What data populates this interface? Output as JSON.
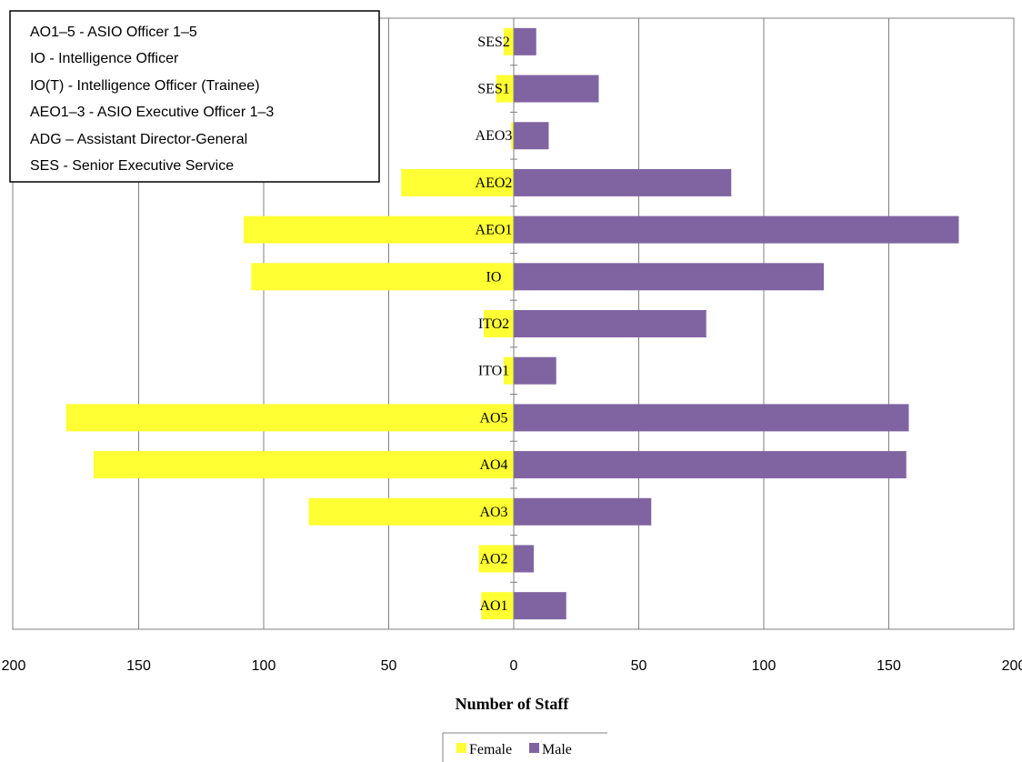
{
  "chart_data": {
    "type": "bar",
    "orientation": "horizontal",
    "layout": "butterfly",
    "categories": [
      "SES2",
      "SES1",
      "AEO3",
      "AEO2",
      "AEO1",
      "IO",
      "ITO2",
      "ITO1",
      "AO5",
      "AO4",
      "AO3",
      "AO2",
      "AO1"
    ],
    "series": [
      {
        "name": "Female",
        "color": "#ffff33",
        "values": [
          4,
          7,
          1,
          45,
          108,
          105,
          12,
          4,
          179,
          168,
          82,
          14,
          13
        ]
      },
      {
        "name": "Male",
        "color": "#8064a2",
        "values": [
          9,
          34,
          14,
          87,
          178,
          124,
          77,
          17,
          158,
          157,
          55,
          8,
          21
        ]
      }
    ],
    "xlabel": "Number of Staff",
    "x_tick_labels": [
      "200",
      "150",
      "100",
      "50",
      "0",
      "50",
      "100",
      "150",
      "200"
    ],
    "xlim": [
      -200,
      200
    ],
    "grid": true,
    "legend_position": "bottom",
    "notes": [
      "AO1–5 - ASIO Officer 1–5",
      "IO - Intelligence Officer",
      "IO(T) - Intelligence Officer (Trainee)",
      "AEO1–3 - ASIO Executive Officer 1–3",
      "ADG – Assistant Director-General",
      "SES - Senior Executive Service"
    ]
  }
}
